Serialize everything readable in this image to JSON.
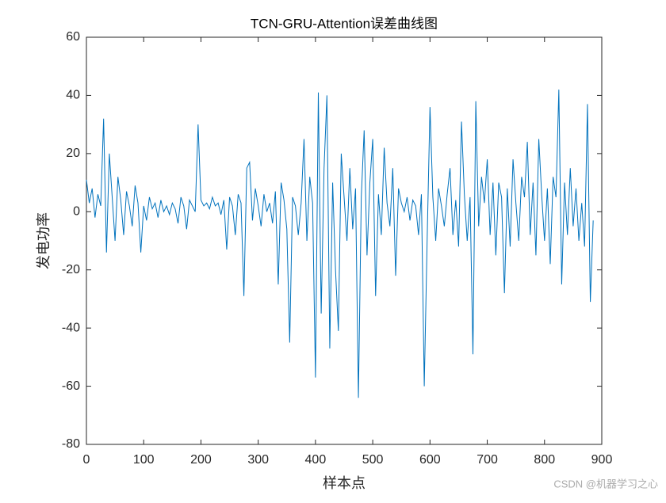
{
  "chart_data": {
    "type": "line",
    "title": "TCN-GRU-Attention误差曲线图",
    "x_label": "样本点",
    "y_label": "发电功率",
    "watermark": "CSDN @机器学习之心",
    "x": [
      0,
      5,
      10,
      15,
      20,
      25,
      30,
      35,
      40,
      45,
      50,
      55,
      60,
      65,
      70,
      75,
      80,
      85,
      90,
      95,
      100,
      105,
      110,
      115,
      120,
      125,
      130,
      135,
      140,
      145,
      150,
      155,
      160,
      165,
      170,
      175,
      180,
      185,
      190,
      195,
      200,
      205,
      210,
      215,
      220,
      225,
      230,
      235,
      240,
      245,
      250,
      255,
      260,
      265,
      270,
      275,
      280,
      285,
      290,
      295,
      300,
      305,
      310,
      315,
      320,
      325,
      330,
      335,
      340,
      345,
      350,
      355,
      360,
      365,
      370,
      375,
      380,
      385,
      390,
      395,
      400,
      405,
      410,
      415,
      420,
      425,
      430,
      435,
      440,
      445,
      450,
      455,
      460,
      465,
      470,
      475,
      480,
      485,
      490,
      495,
      500,
      505,
      510,
      515,
      520,
      525,
      530,
      535,
      540,
      545,
      550,
      555,
      560,
      565,
      570,
      575,
      580,
      585,
      590,
      595,
      600,
      605,
      610,
      615,
      620,
      625,
      630,
      635,
      640,
      645,
      650,
      655,
      660,
      665,
      670,
      675,
      680,
      685,
      690,
      695,
      700,
      705,
      710,
      715,
      720,
      725,
      730,
      735,
      740,
      745,
      750,
      755,
      760,
      765,
      770,
      775,
      780,
      785,
      790,
      795,
      800,
      805,
      810,
      815,
      820,
      825,
      830,
      835,
      840,
      845,
      850,
      855,
      860,
      865,
      870,
      875,
      880,
      885
    ],
    "series": [
      {
        "color": "#0072bd",
        "values": [
          11,
          3,
          8,
          -2,
          6,
          2,
          32,
          -14,
          20,
          5,
          -10,
          12,
          4,
          -8,
          7,
          2,
          -5,
          9,
          3,
          -14,
          2,
          -3,
          5,
          1,
          3,
          -2,
          4,
          0,
          2,
          -1,
          3,
          1,
          -4,
          5,
          2,
          -6,
          4,
          2,
          0,
          30,
          4,
          2,
          3,
          1,
          5,
          2,
          3,
          -1,
          4,
          -13,
          5,
          2,
          -8,
          6,
          3,
          -29,
          15,
          17,
          -3,
          8,
          2,
          -5,
          6,
          0,
          3,
          -4,
          7,
          -25,
          10,
          4,
          -6,
          -45,
          5,
          2,
          -8,
          3,
          25,
          -10,
          12,
          3,
          -57,
          41,
          -35,
          15,
          40,
          -47,
          10,
          -20,
          -41,
          20,
          5,
          -10,
          15,
          -6,
          8,
          -64,
          5,
          28,
          -15,
          10,
          25,
          -29,
          6,
          -8,
          22,
          3,
          -5,
          15,
          -22,
          8,
          3,
          0,
          5,
          -3,
          4,
          2,
          -8,
          6,
          -60,
          -10,
          36,
          5,
          -10,
          8,
          2,
          -5,
          6,
          15,
          -8,
          4,
          -12,
          31,
          6,
          -10,
          5,
          -49,
          38,
          -5,
          12,
          3,
          18,
          -8,
          10,
          -15,
          10,
          5,
          -28,
          8,
          -12,
          18,
          3,
          -10,
          12,
          5,
          24,
          -8,
          10,
          -15,
          25,
          6,
          -10,
          8,
          -18,
          12,
          5,
          42,
          -25,
          10,
          -8,
          15,
          -5,
          8,
          -10,
          3,
          -12,
          37,
          -31,
          -3
        ]
      }
    ],
    "xlim": [
      0,
      900
    ],
    "xticks": [
      0,
      100,
      200,
      300,
      400,
      500,
      600,
      700,
      800,
      900
    ],
    "ylim": [
      -80,
      60
    ],
    "yticks": [
      -80,
      -60,
      -40,
      -20,
      0,
      20,
      40,
      60
    ]
  }
}
